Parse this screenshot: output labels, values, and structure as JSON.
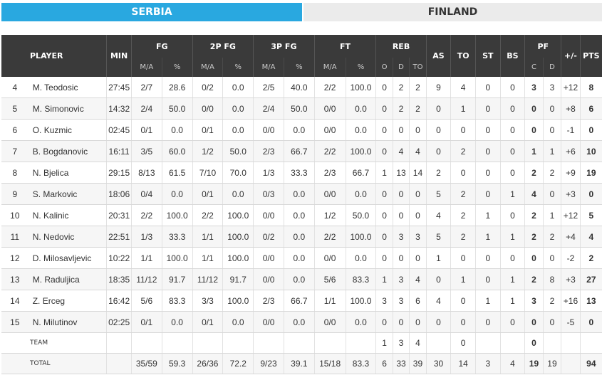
{
  "tabs": [
    {
      "label": "SERBIA",
      "active": true,
      "color": "#29a8e0"
    },
    {
      "label": "FINLAND",
      "active": false,
      "color": "#ebebeb"
    }
  ],
  "headers": {
    "player": "PLAYER",
    "min": "MIN",
    "fg": "FG",
    "p2": "2P FG",
    "p3": "3P FG",
    "ft": "FT",
    "reb": "REB",
    "as": "AS",
    "to": "TO",
    "st": "ST",
    "bs": "BS",
    "pf": "PF",
    "pm": "+/-",
    "pts": "PTS",
    "ma": "M/A",
    "pct": "%",
    "o": "O",
    "d": "D",
    "tot": "TO",
    "c": "C",
    "pfd": "D"
  },
  "players": [
    {
      "no": "4",
      "name": "M. Teodosic",
      "min": "27:45",
      "fg_ma": "2/7",
      "fg_pct": "28.6",
      "p2_ma": "0/2",
      "p2_pct": "0.0",
      "p3_ma": "2/5",
      "p3_pct": "40.0",
      "ft_ma": "2/2",
      "ft_pct": "100.0",
      "reb_o": "0",
      "reb_d": "2",
      "reb_t": "2",
      "as": "9",
      "to": "4",
      "st": "0",
      "bs": "0",
      "pf_c": "3",
      "pf_d": "3",
      "pm": "+12",
      "pts": "8"
    },
    {
      "no": "5",
      "name": "M. Simonovic",
      "min": "14:32",
      "fg_ma": "2/4",
      "fg_pct": "50.0",
      "p2_ma": "0/0",
      "p2_pct": "0.0",
      "p3_ma": "2/4",
      "p3_pct": "50.0",
      "ft_ma": "0/0",
      "ft_pct": "0.0",
      "reb_o": "0",
      "reb_d": "2",
      "reb_t": "2",
      "as": "0",
      "to": "1",
      "st": "0",
      "bs": "0",
      "pf_c": "0",
      "pf_d": "0",
      "pm": "+8",
      "pts": "6"
    },
    {
      "no": "6",
      "name": "O. Kuzmic",
      "min": "02:45",
      "fg_ma": "0/1",
      "fg_pct": "0.0",
      "p2_ma": "0/1",
      "p2_pct": "0.0",
      "p3_ma": "0/0",
      "p3_pct": "0.0",
      "ft_ma": "0/0",
      "ft_pct": "0.0",
      "reb_o": "0",
      "reb_d": "0",
      "reb_t": "0",
      "as": "0",
      "to": "0",
      "st": "0",
      "bs": "0",
      "pf_c": "0",
      "pf_d": "0",
      "pm": "-1",
      "pts": "0"
    },
    {
      "no": "7",
      "name": "B. Bogdanovic",
      "min": "16:11",
      "fg_ma": "3/5",
      "fg_pct": "60.0",
      "p2_ma": "1/2",
      "p2_pct": "50.0",
      "p3_ma": "2/3",
      "p3_pct": "66.7",
      "ft_ma": "2/2",
      "ft_pct": "100.0",
      "reb_o": "0",
      "reb_d": "4",
      "reb_t": "4",
      "as": "0",
      "to": "2",
      "st": "0",
      "bs": "0",
      "pf_c": "1",
      "pf_d": "1",
      "pm": "+6",
      "pts": "10"
    },
    {
      "no": "8",
      "name": "N. Bjelica",
      "min": "29:15",
      "fg_ma": "8/13",
      "fg_pct": "61.5",
      "p2_ma": "7/10",
      "p2_pct": "70.0",
      "p3_ma": "1/3",
      "p3_pct": "33.3",
      "ft_ma": "2/3",
      "ft_pct": "66.7",
      "reb_o": "1",
      "reb_d": "13",
      "reb_t": "14",
      "as": "2",
      "to": "0",
      "st": "0",
      "bs": "0",
      "pf_c": "2",
      "pf_d": "2",
      "pm": "+9",
      "pts": "19"
    },
    {
      "no": "9",
      "name": "S. Markovic",
      "min": "18:06",
      "fg_ma": "0/4",
      "fg_pct": "0.0",
      "p2_ma": "0/1",
      "p2_pct": "0.0",
      "p3_ma": "0/3",
      "p3_pct": "0.0",
      "ft_ma": "0/0",
      "ft_pct": "0.0",
      "reb_o": "0",
      "reb_d": "0",
      "reb_t": "0",
      "as": "5",
      "to": "2",
      "st": "0",
      "bs": "1",
      "pf_c": "4",
      "pf_d": "0",
      "pm": "+3",
      "pts": "0"
    },
    {
      "no": "10",
      "name": "N. Kalinic",
      "min": "20:31",
      "fg_ma": "2/2",
      "fg_pct": "100.0",
      "p2_ma": "2/2",
      "p2_pct": "100.0",
      "p3_ma": "0/0",
      "p3_pct": "0.0",
      "ft_ma": "1/2",
      "ft_pct": "50.0",
      "reb_o": "0",
      "reb_d": "0",
      "reb_t": "0",
      "as": "4",
      "to": "2",
      "st": "1",
      "bs": "0",
      "pf_c": "2",
      "pf_d": "1",
      "pm": "+12",
      "pts": "5"
    },
    {
      "no": "11",
      "name": "N. Nedovic",
      "min": "22:51",
      "fg_ma": "1/3",
      "fg_pct": "33.3",
      "p2_ma": "1/1",
      "p2_pct": "100.0",
      "p3_ma": "0/2",
      "p3_pct": "0.0",
      "ft_ma": "2/2",
      "ft_pct": "100.0",
      "reb_o": "0",
      "reb_d": "3",
      "reb_t": "3",
      "as": "5",
      "to": "2",
      "st": "1",
      "bs": "1",
      "pf_c": "2",
      "pf_d": "2",
      "pm": "+4",
      "pts": "4"
    },
    {
      "no": "12",
      "name": "D. Milosavljevic",
      "min": "10:22",
      "fg_ma": "1/1",
      "fg_pct": "100.0",
      "p2_ma": "1/1",
      "p2_pct": "100.0",
      "p3_ma": "0/0",
      "p3_pct": "0.0",
      "ft_ma": "0/0",
      "ft_pct": "0.0",
      "reb_o": "0",
      "reb_d": "0",
      "reb_t": "0",
      "as": "1",
      "to": "0",
      "st": "0",
      "bs": "0",
      "pf_c": "0",
      "pf_d": "0",
      "pm": "-2",
      "pts": "2"
    },
    {
      "no": "13",
      "name": "M. Raduljica",
      "min": "18:35",
      "fg_ma": "11/12",
      "fg_pct": "91.7",
      "p2_ma": "11/12",
      "p2_pct": "91.7",
      "p3_ma": "0/0",
      "p3_pct": "0.0",
      "ft_ma": "5/6",
      "ft_pct": "83.3",
      "reb_o": "1",
      "reb_d": "3",
      "reb_t": "4",
      "as": "0",
      "to": "1",
      "st": "0",
      "bs": "1",
      "pf_c": "2",
      "pf_d": "8",
      "pm": "+3",
      "pts": "27"
    },
    {
      "no": "14",
      "name": "Z. Erceg",
      "min": "16:42",
      "fg_ma": "5/6",
      "fg_pct": "83.3",
      "p2_ma": "3/3",
      "p2_pct": "100.0",
      "p3_ma": "2/3",
      "p3_pct": "66.7",
      "ft_ma": "1/1",
      "ft_pct": "100.0",
      "reb_o": "3",
      "reb_d": "3",
      "reb_t": "6",
      "as": "4",
      "to": "0",
      "st": "1",
      "bs": "1",
      "pf_c": "3",
      "pf_d": "2",
      "pm": "+16",
      "pts": "13"
    },
    {
      "no": "15",
      "name": "N. Milutinov",
      "min": "02:25",
      "fg_ma": "0/1",
      "fg_pct": "0.0",
      "p2_ma": "0/1",
      "p2_pct": "0.0",
      "p3_ma": "0/0",
      "p3_pct": "0.0",
      "ft_ma": "0/0",
      "ft_pct": "0.0",
      "reb_o": "0",
      "reb_d": "0",
      "reb_t": "0",
      "as": "0",
      "to": "0",
      "st": "0",
      "bs": "0",
      "pf_c": "0",
      "pf_d": "0",
      "pm": "-5",
      "pts": "0"
    }
  ],
  "team": {
    "label": "TEAM",
    "reb_o": "1",
    "reb_d": "3",
    "reb_t": "4",
    "to": "0",
    "pf_c": "0"
  },
  "total": {
    "label": "TOTAL",
    "fg_ma": "35/59",
    "fg_pct": "59.3",
    "p2_ma": "26/36",
    "p2_pct": "72.2",
    "p3_ma": "9/23",
    "p3_pct": "39.1",
    "ft_ma": "15/18",
    "ft_pct": "83.3",
    "reb_o": "6",
    "reb_d": "33",
    "reb_t": "39",
    "as": "30",
    "to": "14",
    "st": "3",
    "bs": "4",
    "pf_c": "19",
    "pf_d": "19",
    "pts": "94"
  }
}
